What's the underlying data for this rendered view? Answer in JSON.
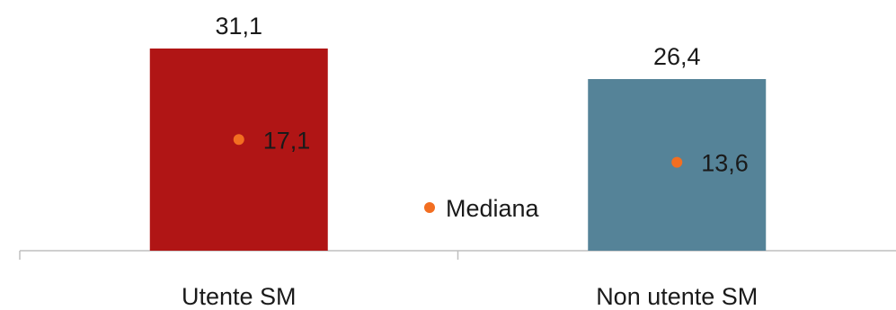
{
  "chart_data": {
    "type": "bar",
    "title": "",
    "xlabel": "",
    "ylabel": "",
    "ylim": [
      0,
      34
    ],
    "categories": [
      "Utente SM",
      "Non utente SM"
    ],
    "values": [
      31.1,
      26.4
    ],
    "value_labels": [
      "31,1",
      "26,4"
    ],
    "bar_colors": [
      "#B01515",
      "#558398"
    ],
    "median": {
      "name": "Mediana",
      "values": [
        17.1,
        13.6
      ],
      "value_labels": [
        "17,1",
        "13,6"
      ],
      "marker_color": "#F26E21"
    },
    "legend": {
      "entries": [
        "Mediana"
      ],
      "position": "center"
    },
    "grid": false,
    "axis_color": "#BFBFBF"
  }
}
